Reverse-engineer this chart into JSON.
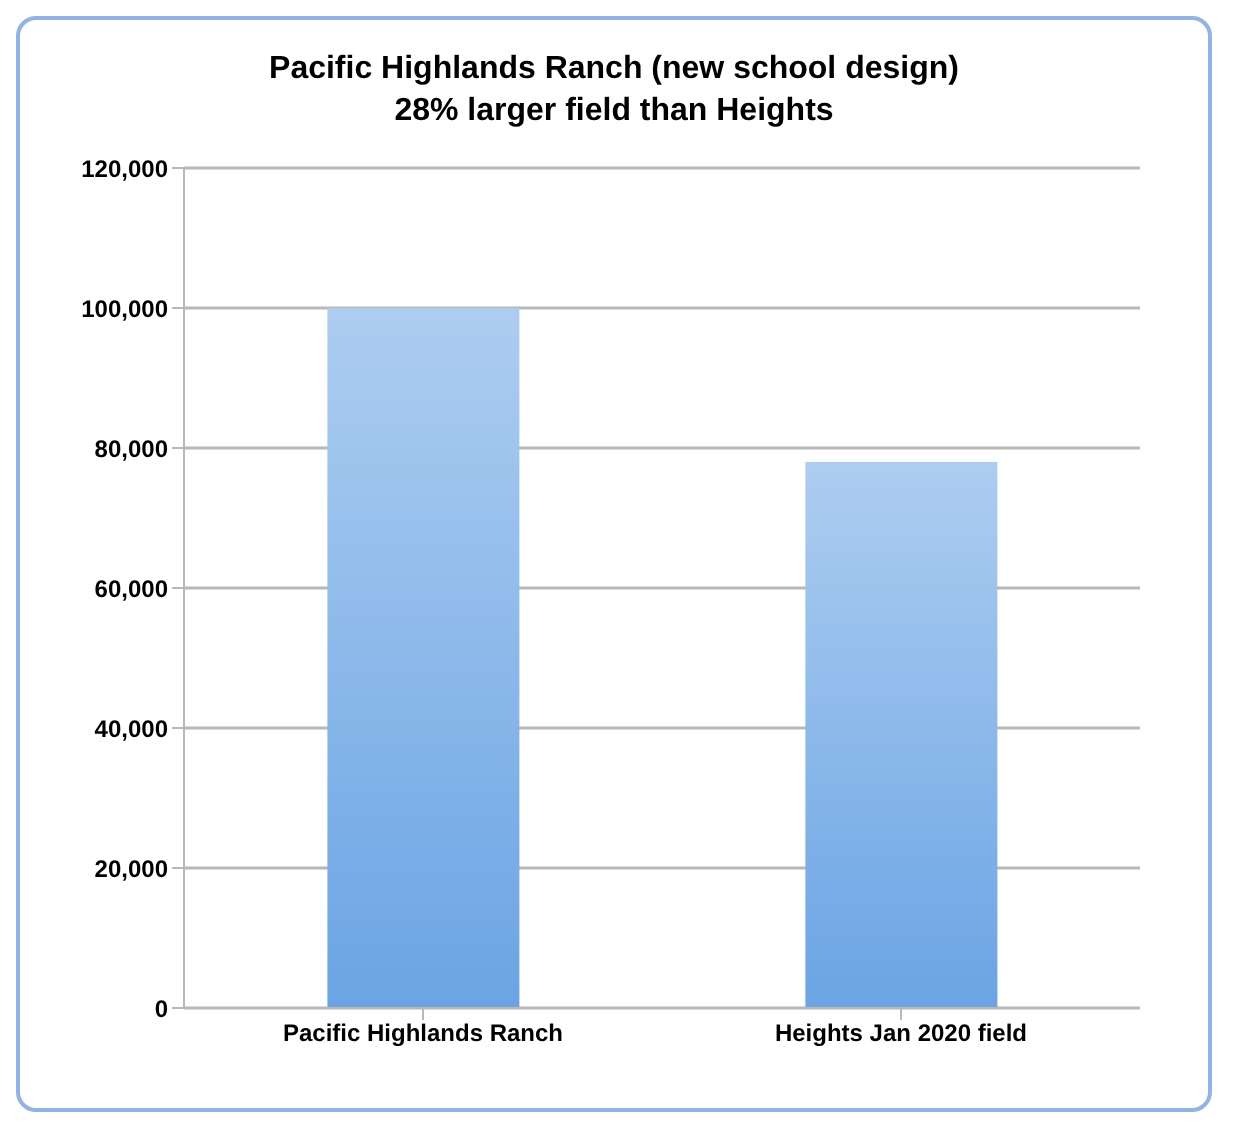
{
  "chart_data": {
    "type": "bar",
    "title": "Pacific Highlands Ranch (new school design)\n28% larger field than Heights",
    "categories": [
      "Pacific Highlands Ranch",
      "Heights Jan 2020 field"
    ],
    "values": [
      100000,
      78000
    ],
    "color": "#6aa4e4",
    "ylim": [
      0,
      120000
    ],
    "yticks": [
      0,
      {
        "value": 20000,
        "label": "20,000"
      },
      {
        "value": 40000,
        "label": "40,000"
      },
      {
        "value": 60000,
        "label": "60,000"
      },
      {
        "value": 80000,
        "label": "80,000"
      },
      {
        "value": 100000,
        "label": "100,000"
      },
      {
        "value": 120000,
        "label": "120,000"
      }
    ],
    "grid": "y"
  }
}
